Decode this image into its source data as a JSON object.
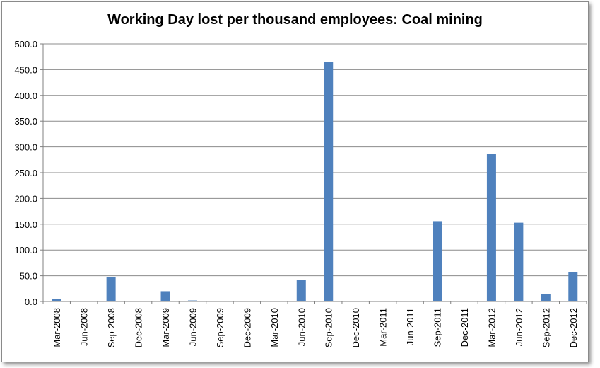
{
  "chart_data": {
    "type": "bar",
    "title": "Working Day lost per thousand employees: Coal mining",
    "xlabel": "",
    "ylabel": "",
    "ylim": [
      0,
      500
    ],
    "yticks": [
      "0.0",
      "50.0",
      "100.0",
      "150.0",
      "200.0",
      "250.0",
      "300.0",
      "350.0",
      "400.0",
      "450.0",
      "500.0"
    ],
    "grid": true,
    "legend": "none",
    "bar_color": "#4F81BD",
    "categories": [
      "Mar-2008",
      "Jun-2008",
      "Sep-2008",
      "Dec-2008",
      "Mar-2009",
      "Jun-2009",
      "Sep-2009",
      "Dec-2009",
      "Mar-2010",
      "Jun-2010",
      "Sep-2010",
      "Dec-2010",
      "Mar-2011",
      "Jun-2011",
      "Sep-2011",
      "Dec-2011",
      "Mar-2012",
      "Jun-2012",
      "Sep-2012",
      "Dec-2012"
    ],
    "values": [
      5,
      0,
      47,
      0,
      20,
      2,
      0,
      0,
      0,
      42,
      465,
      0,
      0,
      0,
      156,
      0,
      287,
      153,
      15,
      57
    ]
  }
}
